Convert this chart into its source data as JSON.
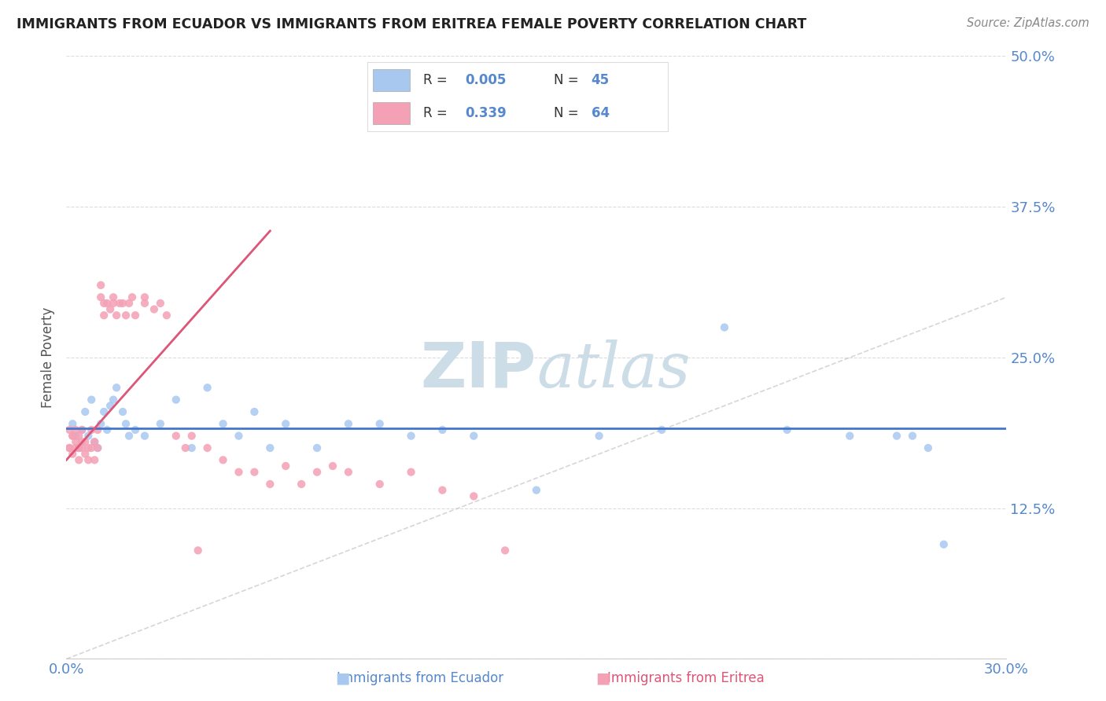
{
  "title": "IMMIGRANTS FROM ECUADOR VS IMMIGRANTS FROM ERITREA FEMALE POVERTY CORRELATION CHART",
  "source": "Source: ZipAtlas.com",
  "xlabel_ecuador": "Immigrants from Ecuador",
  "xlabel_eritrea": "Immigrants from Eritrea",
  "ylabel": "Female Poverty",
  "xlim": [
    0.0,
    0.3
  ],
  "ylim": [
    0.0,
    0.5
  ],
  "ytick_vals": [
    0.0,
    0.125,
    0.25,
    0.375,
    0.5
  ],
  "ytick_labels": [
    "",
    "12.5%",
    "25.0%",
    "37.5%",
    "50.0%"
  ],
  "xtick_vals": [
    0.0,
    0.3
  ],
  "xtick_labels": [
    "0.0%",
    "30.0%"
  ],
  "legend_ecuador_r": "0.005",
  "legend_ecuador_n": "45",
  "legend_eritrea_r": "0.339",
  "legend_eritrea_n": "64",
  "ecuador_color": "#a8c8f0",
  "eritrea_color": "#f4a0b5",
  "ecuador_line_color": "#4477cc",
  "eritrea_line_color": "#dd5577",
  "diag_line_color": "#cccccc",
  "watermark_color": "#ccdde8",
  "background_color": "#ffffff",
  "grid_color": "#cccccc",
  "axis_color": "#5588cc",
  "title_color": "#222222",
  "source_color": "#888888",
  "ylabel_color": "#555555",
  "ecuador_x": [
    0.002,
    0.003,
    0.004,
    0.005,
    0.006,
    0.007,
    0.008,
    0.009,
    0.01,
    0.011,
    0.012,
    0.013,
    0.014,
    0.015,
    0.016,
    0.018,
    0.019,
    0.02,
    0.022,
    0.025,
    0.03,
    0.035,
    0.04,
    0.045,
    0.05,
    0.055,
    0.06,
    0.065,
    0.07,
    0.08,
    0.09,
    0.1,
    0.11,
    0.12,
    0.13,
    0.15,
    0.17,
    0.19,
    0.21,
    0.23,
    0.25,
    0.265,
    0.27,
    0.275,
    0.28
  ],
  "ecuador_y": [
    0.195,
    0.185,
    0.175,
    0.19,
    0.205,
    0.185,
    0.215,
    0.18,
    0.175,
    0.195,
    0.205,
    0.19,
    0.21,
    0.215,
    0.225,
    0.205,
    0.195,
    0.185,
    0.19,
    0.185,
    0.195,
    0.215,
    0.175,
    0.225,
    0.195,
    0.185,
    0.205,
    0.175,
    0.195,
    0.175,
    0.195,
    0.195,
    0.185,
    0.19,
    0.185,
    0.14,
    0.185,
    0.19,
    0.275,
    0.19,
    0.185,
    0.185,
    0.185,
    0.175,
    0.095
  ],
  "eritrea_x": [
    0.001,
    0.001,
    0.001,
    0.002,
    0.002,
    0.002,
    0.003,
    0.003,
    0.003,
    0.004,
    0.004,
    0.004,
    0.005,
    0.005,
    0.005,
    0.006,
    0.006,
    0.007,
    0.007,
    0.008,
    0.008,
    0.009,
    0.009,
    0.01,
    0.01,
    0.011,
    0.011,
    0.012,
    0.012,
    0.013,
    0.014,
    0.015,
    0.015,
    0.016,
    0.017,
    0.018,
    0.019,
    0.02,
    0.021,
    0.022,
    0.025,
    0.025,
    0.028,
    0.03,
    0.032,
    0.035,
    0.038,
    0.04,
    0.042,
    0.045,
    0.05,
    0.055,
    0.06,
    0.065,
    0.07,
    0.075,
    0.08,
    0.085,
    0.09,
    0.1,
    0.11,
    0.12,
    0.13,
    0.14
  ],
  "eritrea_y": [
    0.175,
    0.19,
    0.175,
    0.185,
    0.17,
    0.185,
    0.18,
    0.19,
    0.175,
    0.185,
    0.175,
    0.165,
    0.18,
    0.175,
    0.19,
    0.17,
    0.18,
    0.175,
    0.165,
    0.19,
    0.175,
    0.18,
    0.165,
    0.175,
    0.19,
    0.3,
    0.31,
    0.295,
    0.285,
    0.295,
    0.29,
    0.295,
    0.3,
    0.285,
    0.295,
    0.295,
    0.285,
    0.295,
    0.3,
    0.285,
    0.3,
    0.295,
    0.29,
    0.295,
    0.285,
    0.185,
    0.175,
    0.185,
    0.09,
    0.175,
    0.165,
    0.155,
    0.155,
    0.145,
    0.16,
    0.145,
    0.155,
    0.16,
    0.155,
    0.145,
    0.155,
    0.14,
    0.135,
    0.09
  ]
}
